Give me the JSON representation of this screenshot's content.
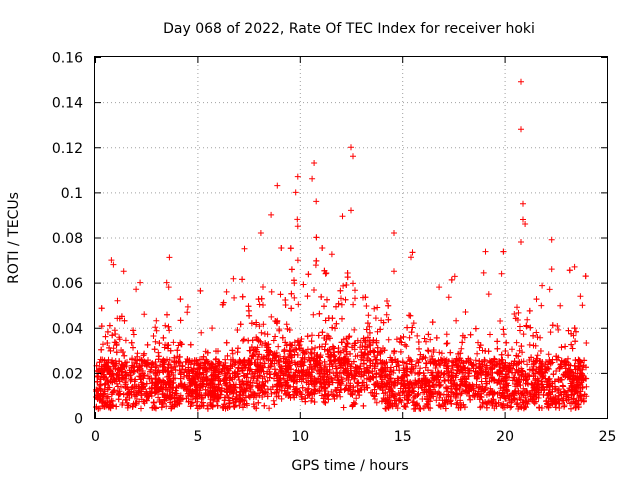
{
  "chart_data": {
    "type": "scatter",
    "title": "Day 068 of 2022, Rate Of TEC Index for receiver hoki",
    "xlabel": "GPS time / hours",
    "ylabel": "ROTI / TECUs",
    "xlim": [
      0,
      25
    ],
    "ylim": [
      0,
      0.16
    ],
    "xticks": [
      "0",
      "5",
      "10",
      "15",
      "20",
      "25"
    ],
    "yticks": [
      "0",
      "0.02",
      "0.04",
      "0.06",
      "0.08",
      "0.1",
      "0.12",
      "0.14",
      "0.16"
    ],
    "grid": true,
    "marker": "+",
    "color": "#ff0000",
    "envelope": {
      "description_hours": [
        0.2,
        1,
        2,
        3,
        4,
        5,
        6,
        7,
        8,
        9,
        10,
        11,
        12,
        13,
        14,
        15,
        16,
        17,
        18,
        19,
        20,
        21,
        22,
        23,
        24
      ],
      "typical_upper": [
        0.03,
        0.05,
        0.04,
        0.045,
        0.04,
        0.03,
        0.03,
        0.04,
        0.06,
        0.065,
        0.07,
        0.075,
        0.075,
        0.06,
        0.05,
        0.05,
        0.04,
        0.04,
        0.04,
        0.045,
        0.045,
        0.05,
        0.045,
        0.04,
        0.04
      ]
    },
    "notable_points": [
      {
        "x": 0.8,
        "y": 0.07
      },
      {
        "x": 0.9,
        "y": 0.068
      },
      {
        "x": 1.1,
        "y": 0.052
      },
      {
        "x": 1.4,
        "y": 0.065
      },
      {
        "x": 2.2,
        "y": 0.06
      },
      {
        "x": 2.4,
        "y": 0.046
      },
      {
        "x": 3.5,
        "y": 0.06
      },
      {
        "x": 3.6,
        "y": 0.058
      },
      {
        "x": 7.3,
        "y": 0.075
      },
      {
        "x": 8.1,
        "y": 0.082
      },
      {
        "x": 8.6,
        "y": 0.09
      },
      {
        "x": 8.9,
        "y": 0.103
      },
      {
        "x": 9.9,
        "y": 0.107
      },
      {
        "x": 9.8,
        "y": 0.1
      },
      {
        "x": 9.9,
        "y": 0.085
      },
      {
        "x": 10.7,
        "y": 0.113
      },
      {
        "x": 10.6,
        "y": 0.106
      },
      {
        "x": 10.8,
        "y": 0.096
      },
      {
        "x": 12.5,
        "y": 0.12
      },
      {
        "x": 12.6,
        "y": 0.116
      },
      {
        "x": 12.5,
        "y": 0.092
      },
      {
        "x": 14.6,
        "y": 0.082
      },
      {
        "x": 14.6,
        "y": 0.065
      },
      {
        "x": 16.8,
        "y": 0.058
      },
      {
        "x": 20.8,
        "y": 0.149
      },
      {
        "x": 20.8,
        "y": 0.128
      },
      {
        "x": 20.9,
        "y": 0.095
      },
      {
        "x": 20.9,
        "y": 0.088
      },
      {
        "x": 21.0,
        "y": 0.086
      },
      {
        "x": 20.8,
        "y": 0.078
      },
      {
        "x": 22.3,
        "y": 0.079
      },
      {
        "x": 22.3,
        "y": 0.066
      },
      {
        "x": 22.2,
        "y": 0.057
      },
      {
        "x": 23.7,
        "y": 0.054
      },
      {
        "x": 23.8,
        "y": 0.05
      }
    ]
  }
}
